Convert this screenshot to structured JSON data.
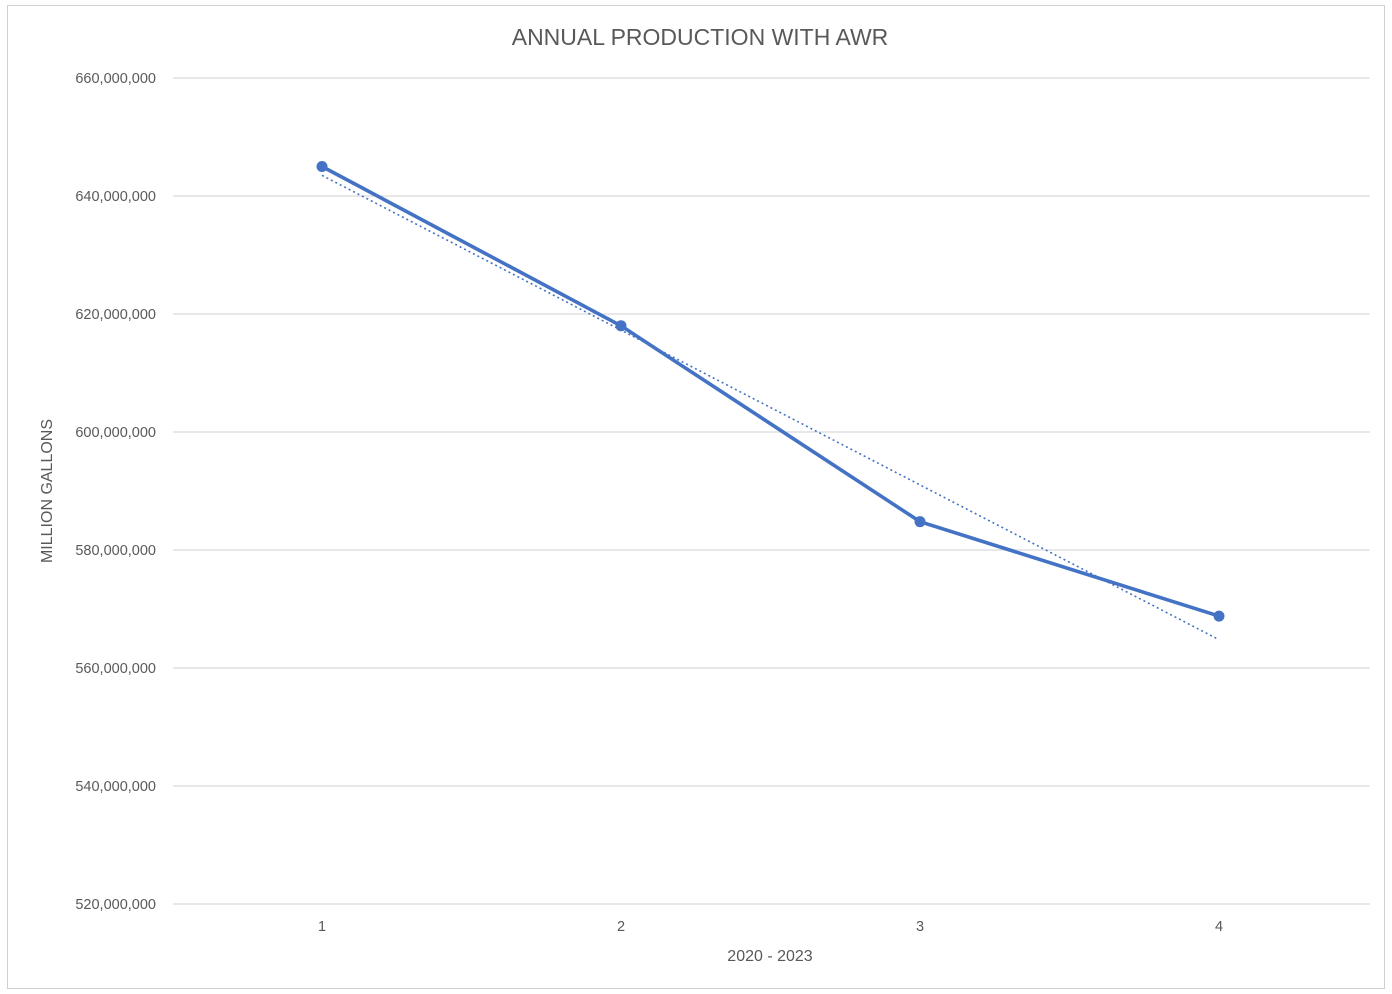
{
  "chart_data": {
    "type": "line",
    "title": "ANNUAL PRODUCTION WITH AWR",
    "xlabel": "2020 - 2023",
    "ylabel": "MILLION GALLONS",
    "categories": [
      "1",
      "2",
      "3",
      "4"
    ],
    "x": [
      1,
      2,
      3,
      4
    ],
    "series": [
      {
        "values": [
          645000000,
          618000000,
          584800000,
          568800000
        ],
        "color": "#4472c4",
        "style": "solid",
        "markers": true
      },
      {
        "type": "trendline",
        "style": "dotted",
        "color": "#4472c4",
        "start": [
          1,
          643500000
        ],
        "end": [
          4,
          564800000
        ]
      }
    ],
    "ylim": [
      520000000,
      660000000
    ],
    "yticks": [
      {
        "value": 520000000,
        "label": "520,000,000"
      },
      {
        "value": 540000000,
        "label": "540,000,000"
      },
      {
        "value": 560000000,
        "label": "560,000,000"
      },
      {
        "value": 580000000,
        "label": "580,000,000"
      },
      {
        "value": 600000000,
        "label": "600,000,000"
      },
      {
        "value": 620000000,
        "label": "620,000,000"
      },
      {
        "value": 640000000,
        "label": "640,000,000"
      },
      {
        "value": 660000000,
        "label": "660,000,000"
      }
    ],
    "grid": true,
    "legend": "none"
  }
}
